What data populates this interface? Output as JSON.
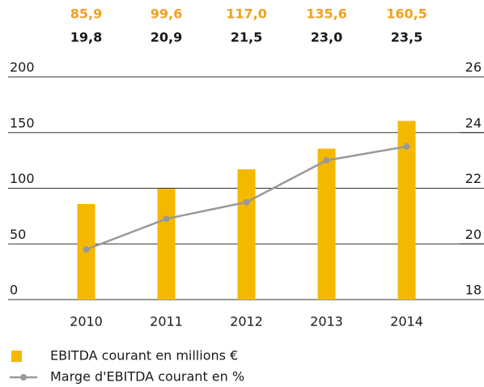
{
  "chart_data": {
    "type": "bar",
    "categories": [
      "2010",
      "2011",
      "2012",
      "2013",
      "2014"
    ],
    "series": [
      {
        "name": "EBITDA courant en millions €",
        "type": "bar",
        "color": "#f5b800",
        "values": [
          85.9,
          99.6,
          117.0,
          135.6,
          160.5
        ],
        "value_labels": [
          "85,9",
          "99,6",
          "117,0",
          "135,6",
          "160,5"
        ]
      },
      {
        "name": "Marge d'EBITDA courant en %",
        "type": "line",
        "axis": "y2",
        "color": "#999999",
        "values": [
          19.8,
          20.9,
          21.5,
          23.0,
          23.5
        ],
        "value_labels": [
          "19,8",
          "20,9",
          "21,5",
          "23,0",
          "23,5"
        ]
      }
    ],
    "ylim": [
      0,
      200
    ],
    "yticks": [
      0,
      50,
      100,
      150,
      200
    ],
    "y2lim": [
      18,
      26
    ],
    "y2ticks": [
      18,
      20,
      22,
      24,
      26
    ],
    "grid": true
  }
}
